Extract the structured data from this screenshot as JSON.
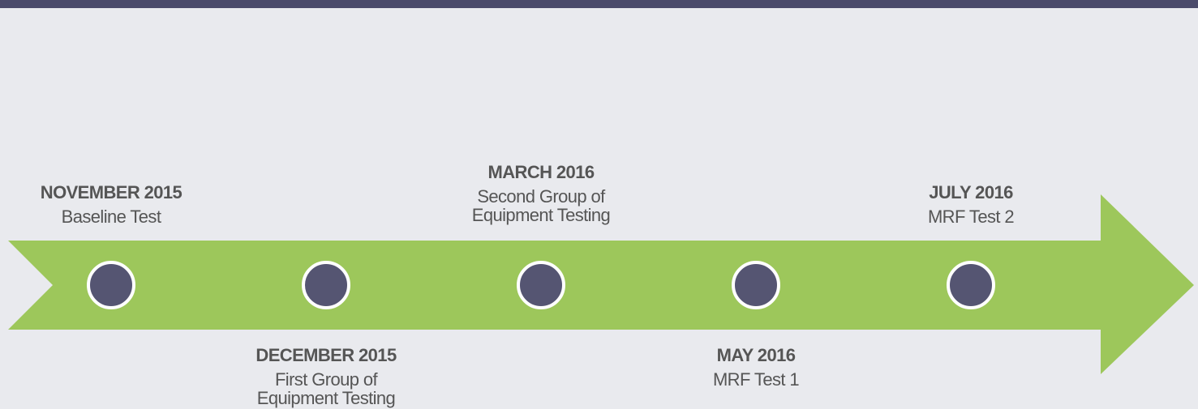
{
  "timeline": {
    "events": [
      {
        "date": "NOVEMBER 2015",
        "description": [
          "Baseline Test"
        ]
      },
      {
        "date": "DECEMBER 2015",
        "description": [
          "First Group of",
          "Equipment Testing"
        ]
      },
      {
        "date": "MARCH 2016",
        "description": [
          "Second Group of",
          "Equipment Testing"
        ]
      },
      {
        "date": "MAY 2016",
        "description": [
          "MRF Test 1"
        ]
      },
      {
        "date": "JULY 2016",
        "description": [
          "MRF Test 2"
        ]
      }
    ]
  }
}
